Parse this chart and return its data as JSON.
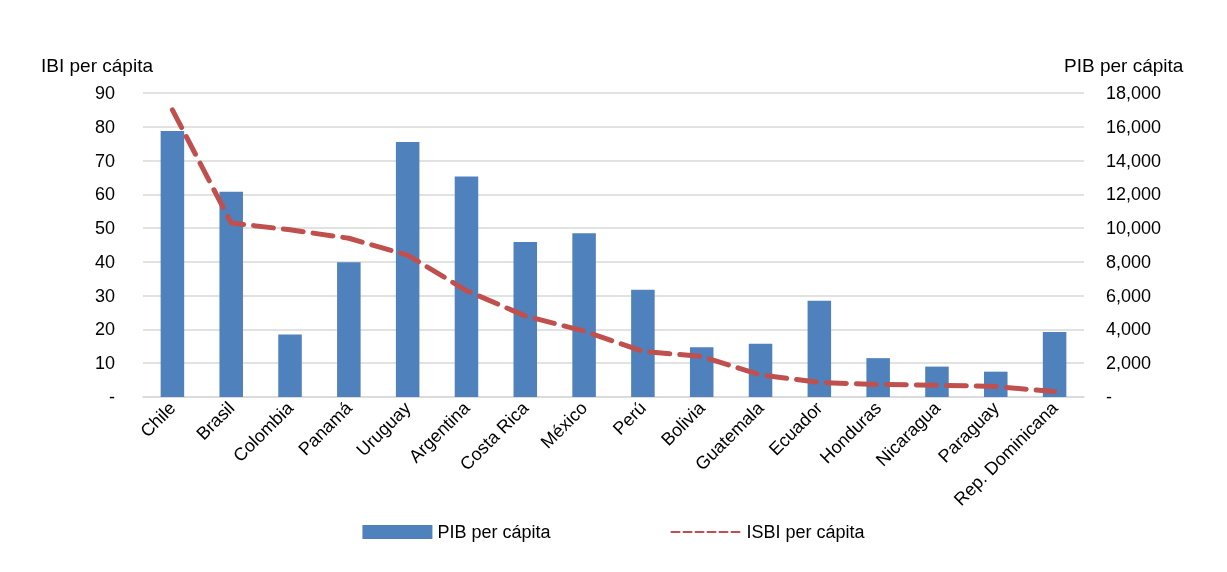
{
  "chart_data": {
    "type": "bar",
    "ylabel": "IBI per cápita",
    "y2label": "PIB per cápita",
    "categories": [
      "Chile",
      "Brasil",
      "Colombia",
      "Panamá",
      "Uruguay",
      "Argentina",
      "Costa Rica",
      "México",
      "Perú",
      "Bolivia",
      "Guatemala",
      "Ecuador",
      "Honduras",
      "Nicaragua",
      "Paraguay",
      "Rep. Dominicana"
    ],
    "series": [
      {
        "name": "PIB per cápita",
        "axis": "y2",
        "color": "#4f81bd",
        "values": [
          15750,
          12150,
          3700,
          7980,
          15100,
          13050,
          9180,
          9700,
          6350,
          2950,
          3150,
          5700,
          2300,
          1800,
          1500,
          3850
        ]
      },
      {
        "name": "ISBI per cápita",
        "type": "line",
        "color": "#c0504d",
        "line_style": "dashed",
        "marker": "none",
        "values": [
          85,
          51.5,
          49.5,
          47,
          42,
          31.5,
          24,
          19.5,
          13.5,
          12,
          6.5,
          4.3,
          3.7,
          3.5,
          3.1,
          1.6
        ]
      }
    ],
    "ylim": [
      0,
      90
    ],
    "yticks": [
      {
        "value": 0,
        "label": "-"
      },
      10,
      20,
      30,
      40,
      50,
      60,
      70,
      80,
      90
    ],
    "y2lim": [
      0,
      18000
    ],
    "y2ticks": [
      {
        "value": 0,
        "label": "-"
      },
      {
        "value": 2000,
        "label": "2,000"
      },
      {
        "value": 4000,
        "label": "4,000"
      },
      {
        "value": 6000,
        "label": "6,000"
      },
      {
        "value": 8000,
        "label": "8,000"
      },
      {
        "value": 10000,
        "label": "10,000"
      },
      {
        "value": 12000,
        "label": "12,000"
      },
      {
        "value": 14000,
        "label": "14,000"
      },
      {
        "value": 16000,
        "label": "16,000"
      },
      {
        "value": 18000,
        "label": "18,000"
      }
    ],
    "grid": "y",
    "legend": "bottom"
  }
}
